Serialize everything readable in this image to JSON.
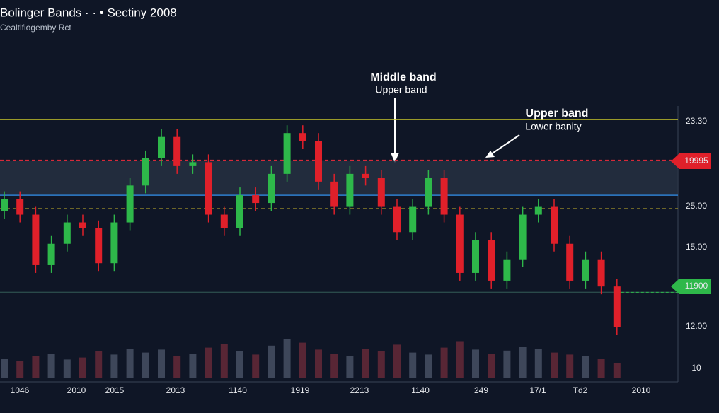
{
  "chart_data": {
    "type": "candlestick",
    "title": "Bolinger Bands · · • Sectiny 2008",
    "subtitle": "Cealtlfiogemby Rct",
    "annotations": [
      [
        "Middle band",
        "Upper band"
      ],
      [
        "Upper band",
        "Lower banity"
      ]
    ],
    "price_labels": [
      "23.30",
      "19995",
      "25.00",
      "15.00",
      "11900",
      "12.00",
      "10"
    ],
    "x_labels": [
      "1046",
      "2010",
      "2015",
      "2013",
      "1140",
      "1919",
      "2213",
      "1140",
      "249",
      "17/1",
      "Td2",
      "2010"
    ],
    "ylim": [
      9.5,
      24.5
    ],
    "up_color": "#2eb84a",
    "down_color": "#e0202a",
    "levels": [
      {
        "value": 23.3,
        "color": "#c8c62a",
        "dash": false
      },
      {
        "value": 21.2,
        "color": "#d62a3a",
        "dash": true
      },
      {
        "value": 19.4,
        "color": "#2f7fd0",
        "dash": false
      },
      {
        "value": 18.7,
        "color": "#c8b42a",
        "dash": true
      },
      {
        "value": 14.4,
        "color": "#2a4a4a",
        "dash": false
      }
    ],
    "opens": [
      18.6,
      19.2,
      18.4,
      15.8,
      16.9,
      18.0,
      17.7,
      15.9,
      18.0,
      19.9,
      21.3,
      22.4,
      20.9,
      21.1,
      18.4,
      17.7,
      19.4,
      19.0,
      20.5,
      22.6,
      22.2,
      20.1,
      18.8,
      20.5,
      20.3,
      18.8,
      17.5,
      18.8,
      20.3,
      18.4,
      15.4,
      17.1,
      15.0,
      16.1,
      18.4,
      18.8,
      16.9,
      15.0,
      16.1,
      14.7
    ],
    "highs": [
      19.6,
      19.6,
      18.8,
      17.3,
      18.4,
      18.4,
      18.1,
      18.4,
      20.3,
      21.7,
      22.8,
      22.8,
      21.5,
      21.5,
      18.8,
      19.8,
      19.8,
      20.9,
      23.0,
      23.0,
      22.6,
      20.5,
      20.9,
      20.9,
      20.7,
      19.2,
      19.2,
      20.7,
      20.7,
      18.8,
      17.5,
      17.5,
      16.5,
      18.8,
      19.2,
      19.2,
      17.3,
      16.5,
      16.5,
      15.1
    ],
    "lows": [
      18.2,
      18.0,
      15.4,
      15.4,
      16.5,
      17.3,
      15.5,
      15.5,
      17.6,
      19.5,
      20.9,
      20.5,
      20.5,
      18.0,
      17.3,
      17.3,
      18.6,
      18.6,
      20.1,
      21.8,
      19.7,
      18.4,
      18.4,
      19.9,
      18.4,
      17.1,
      17.1,
      18.4,
      18.0,
      15.0,
      15.0,
      14.6,
      14.6,
      15.7,
      18.0,
      16.5,
      14.6,
      14.6,
      14.3,
      12.2
    ],
    "closes": [
      19.2,
      18.4,
      15.8,
      16.9,
      18.0,
      17.7,
      15.9,
      18.0,
      19.9,
      21.3,
      22.4,
      20.9,
      21.1,
      18.4,
      17.7,
      19.4,
      19.0,
      20.5,
      22.6,
      22.2,
      20.1,
      18.8,
      20.5,
      20.3,
      18.8,
      17.5,
      18.8,
      20.3,
      18.4,
      15.4,
      17.1,
      15.0,
      16.1,
      18.4,
      18.8,
      16.9,
      15.0,
      16.1,
      14.7,
      12.6
    ],
    "volumes": [
      40,
      35,
      45,
      50,
      38,
      42,
      55,
      48,
      60,
      52,
      58,
      45,
      50,
      62,
      70,
      55,
      48,
      66,
      80,
      72,
      58,
      50,
      45,
      60,
      55,
      68,
      52,
      48,
      62,
      75,
      58,
      50,
      56,
      64,
      60,
      52,
      48,
      45,
      40,
      30
    ]
  }
}
